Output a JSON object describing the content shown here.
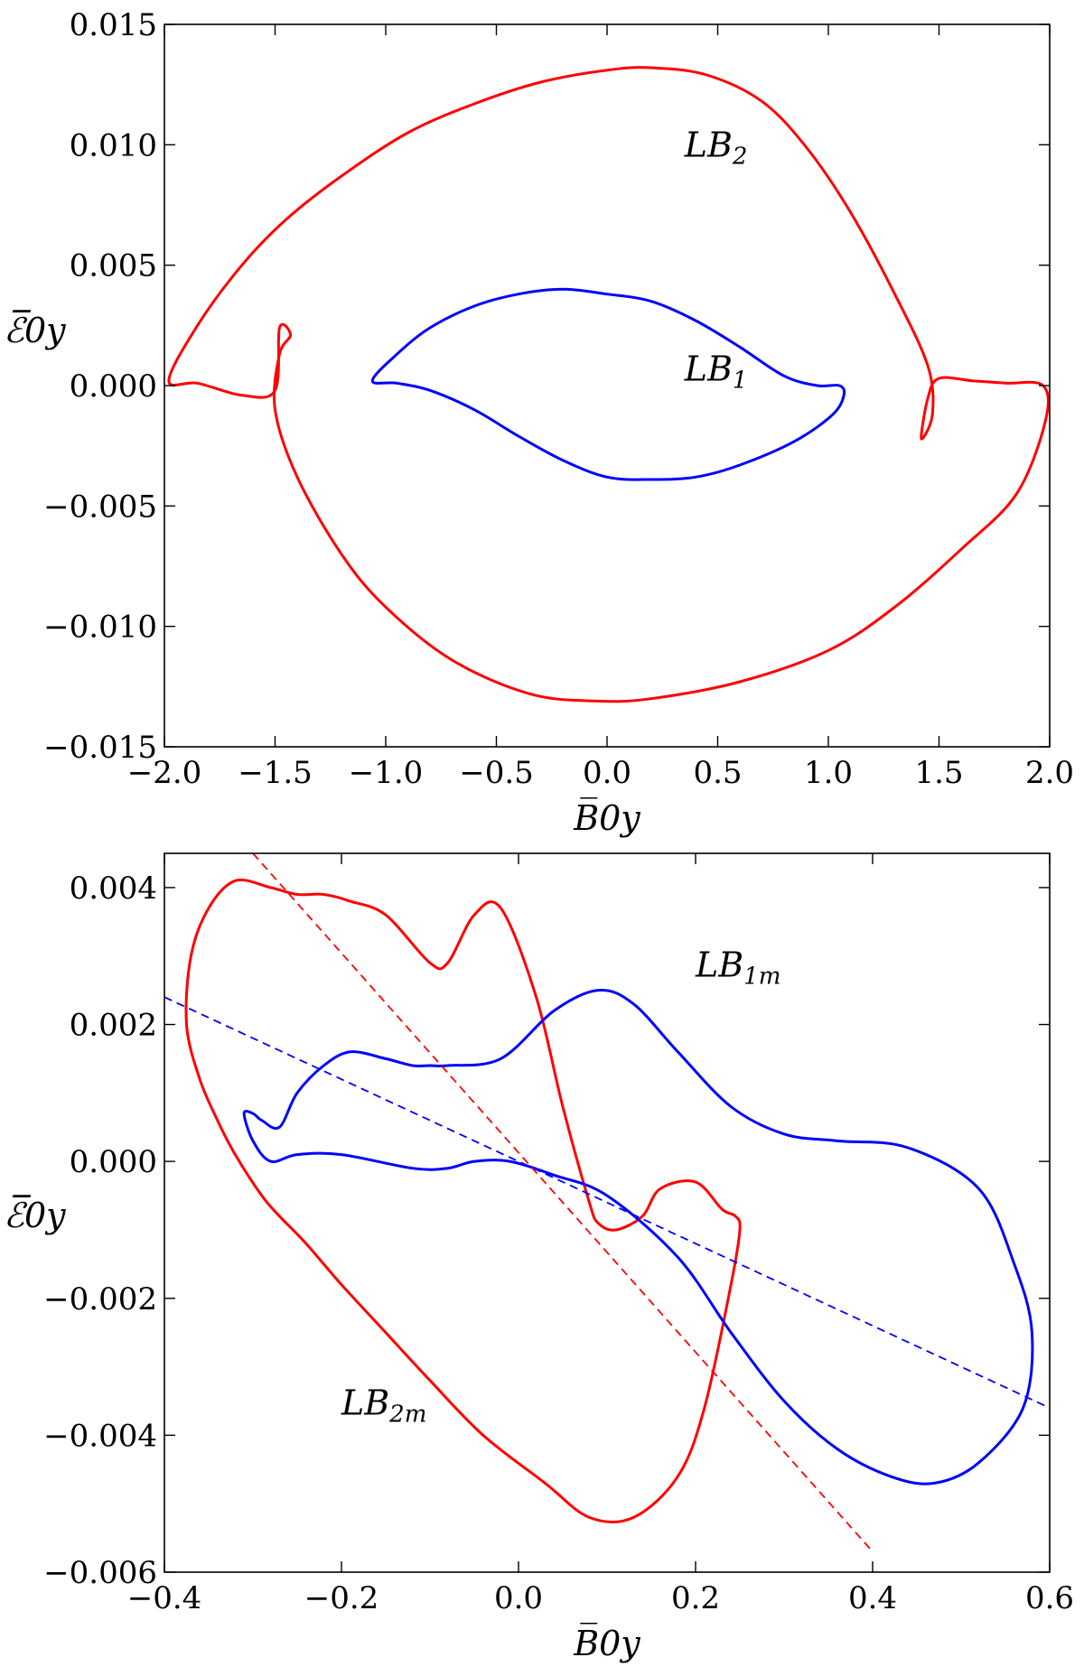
{
  "chart_data": [
    {
      "type": "line",
      "xlabel": "B̅0y",
      "ylabel": "ℰ̅0y",
      "xlim": [
        -2.0,
        2.0
      ],
      "ylim": [
        -0.015,
        0.015
      ],
      "x_ticks": [
        "−2.0",
        "−1.5",
        "−1.0",
        "−0.5",
        "0.0",
        "0.5",
        "1.0",
        "1.5",
        "2.0"
      ],
      "y_ticks": [
        "0.015",
        "0.010",
        "0.005",
        "0.000",
        "−0.005",
        "−0.010",
        "−0.015"
      ],
      "grid": false,
      "annotations": [
        {
          "text": "LB2",
          "x": 0.35,
          "y": 0.0095
        },
        {
          "text": "LB1",
          "x": 0.35,
          "y": 0.0002
        }
      ],
      "series": [
        {
          "color": "#ff0000",
          "style": "solid",
          "x": [
            -1.98,
            -1.85,
            -1.65,
            -1.45,
            -1.2,
            -0.9,
            -0.6,
            -0.3,
            0.0,
            0.2,
            0.45,
            0.7,
            0.9,
            1.1,
            1.3,
            1.45,
            1.47,
            1.42,
            1.45,
            1.5,
            1.65,
            1.8,
            1.97,
            1.98,
            1.85,
            1.6,
            1.3,
            1.0,
            0.6,
            0.2,
            -0.05,
            -0.35,
            -0.7,
            -1.0,
            -1.2,
            -1.4,
            -1.5,
            -1.48,
            -1.43,
            -1.48,
            -1.5,
            -1.65,
            -1.85,
            -1.98
          ],
          "y": [
            0.0002,
            0.0025,
            0.005,
            0.0069,
            0.0087,
            0.0105,
            0.0117,
            0.0126,
            0.0131,
            0.0132,
            0.0129,
            0.0118,
            0.0099,
            0.0072,
            0.0038,
            0.0008,
            -0.0012,
            -0.0022,
            -0.0005,
            0.0003,
            0.0002,
            0.0001,
            0.0,
            -0.0015,
            -0.0045,
            -0.0068,
            -0.0092,
            -0.011,
            -0.0123,
            -0.013,
            -0.0131,
            -0.0128,
            -0.0114,
            -0.0092,
            -0.007,
            -0.0038,
            -0.001,
            0.0013,
            0.0021,
            0.0024,
            -0.0002,
            -0.0004,
            0.0001,
            0.0002
          ]
        },
        {
          "color": "#0000ff",
          "style": "solid",
          "x": [
            -1.06,
            -0.95,
            -0.8,
            -0.6,
            -0.4,
            -0.2,
            0.0,
            0.2,
            0.4,
            0.6,
            0.8,
            0.95,
            1.05,
            1.07,
            1.02,
            0.85,
            0.6,
            0.4,
            0.2,
            0.0,
            -0.2,
            -0.4,
            -0.6,
            -0.8,
            -0.95,
            -1.06
          ],
          "y": [
            0.0002,
            0.0013,
            0.0024,
            0.0033,
            0.0038,
            0.004,
            0.0038,
            0.0035,
            0.0027,
            0.0016,
            0.0004,
            0.0,
            0.0,
            -0.0004,
            -0.0012,
            -0.0023,
            -0.0033,
            -0.0038,
            -0.0039,
            -0.0038,
            -0.0031,
            -0.0021,
            -0.001,
            -0.0002,
            0.0001,
            0.0002
          ]
        }
      ]
    },
    {
      "type": "line",
      "xlabel": "B̅0y",
      "ylabel": "ℰ̅0y",
      "xlim": [
        -0.4,
        0.6
      ],
      "ylim": [
        -0.006,
        0.0045
      ],
      "x_ticks": [
        "−0.4",
        "−0.2",
        "0.0",
        "0.2",
        "0.4",
        "0.6"
      ],
      "y_ticks": [
        "0.004",
        "0.002",
        "0.000",
        "−0.002",
        "−0.004",
        "−0.006"
      ],
      "grid": false,
      "annotations": [
        {
          "text": "LB1m",
          "x": 0.2,
          "y": 0.0027
        },
        {
          "text": "LB2m",
          "x": -0.2,
          "y": -0.0037
        }
      ],
      "series": [
        {
          "color": "#ff0000",
          "style": "solid",
          "x": [
            -0.32,
            -0.35,
            -0.37,
            -0.375,
            -0.36,
            -0.34,
            -0.32,
            -0.29,
            -0.27,
            -0.24,
            -0.2,
            -0.15,
            -0.1,
            -0.04,
            0.03,
            0.08,
            0.13,
            0.18,
            0.21,
            0.24,
            0.25,
            0.245,
            0.23,
            0.2,
            0.16,
            0.14,
            0.11,
            0.09,
            0.08,
            0.05,
            0.02,
            -0.02,
            -0.05,
            -0.08,
            -0.1,
            -0.15,
            -0.19,
            -0.22,
            -0.25,
            -0.28,
            -0.32
          ],
          "y": [
            0.0041,
            0.0037,
            0.003,
            0.002,
            0.0012,
            0.0006,
            0.0001,
            -0.0005,
            -0.0008,
            -0.0012,
            -0.0018,
            -0.0025,
            -0.0032,
            -0.004,
            -0.0047,
            -0.0052,
            -0.0052,
            -0.0046,
            -0.0036,
            -0.0018,
            -0.001,
            -0.0008,
            -0.0007,
            -0.0003,
            -0.0004,
            -0.0008,
            -0.001,
            -0.0009,
            -0.0006,
            0.0008,
            0.0024,
            0.0037,
            0.0036,
            0.0029,
            0.0029,
            0.0036,
            0.0038,
            0.0039,
            0.0039,
            0.004,
            0.0041
          ]
        },
        {
          "color": "#0000ff",
          "style": "solid",
          "x": [
            -0.31,
            -0.3,
            -0.29,
            -0.27,
            -0.25,
            -0.22,
            -0.19,
            -0.15,
            -0.12,
            -0.1,
            -0.08,
            -0.02,
            0.04,
            0.09,
            0.13,
            0.18,
            0.24,
            0.3,
            0.36,
            0.44,
            0.52,
            0.56,
            0.58,
            0.57,
            0.52,
            0.47,
            0.42,
            0.36,
            0.3,
            0.24,
            0.18,
            0.1,
            0.04,
            -0.01,
            -0.05,
            -0.08,
            -0.12,
            -0.2,
            -0.25,
            -0.28,
            -0.3,
            -0.31
          ],
          "y": [
            0.0007,
            0.0007,
            0.0006,
            0.0005,
            0.001,
            0.0014,
            0.0016,
            0.0015,
            0.0014,
            0.0014,
            0.0014,
            0.0015,
            0.0022,
            0.0025,
            0.0023,
            0.0016,
            0.0008,
            0.0004,
            0.0003,
            0.0002,
            -0.0004,
            -0.0015,
            -0.0025,
            -0.0036,
            -0.0044,
            -0.0047,
            -0.0046,
            -0.0042,
            -0.0035,
            -0.0025,
            -0.0014,
            -0.0005,
            -0.0002,
            0.0,
            0.0,
            -0.0001,
            -0.0001,
            0.0001,
            0.0001,
            0.0,
            0.0003,
            0.0007
          ]
        },
        {
          "color": "#ff0000",
          "style": "dashed",
          "x": [
            -0.3,
            0.4
          ],
          "y": [
            0.0045,
            -0.0057
          ]
        },
        {
          "color": "#0000ff",
          "style": "dashed",
          "x": [
            -0.4,
            0.6
          ],
          "y": [
            0.0024,
            -0.0036
          ]
        }
      ]
    }
  ]
}
